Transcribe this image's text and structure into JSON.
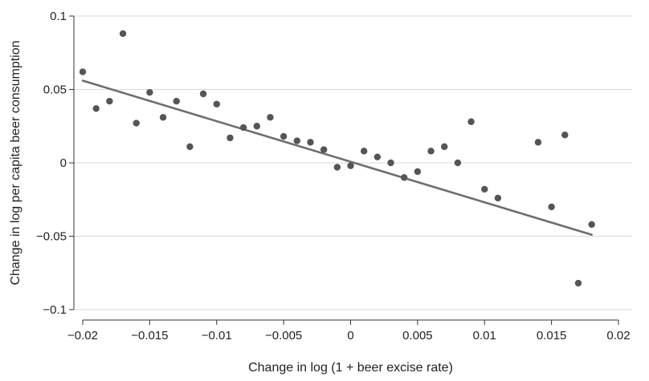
{
  "chart_data": {
    "type": "scatter",
    "title": "",
    "xlabel": "Change in log (1 + beer excise rate)",
    "ylabel": "Change in log per capita beer consumption",
    "xlim": [
      -0.02,
      0.02
    ],
    "ylim": [
      -0.1,
      0.1
    ],
    "x_ticks": [
      -0.02,
      -0.015,
      -0.01,
      -0.005,
      0,
      0.005,
      0.01,
      0.015,
      0.02
    ],
    "x_tick_labels": [
      "−0.02",
      "−0.015",
      "−0.01",
      "−0.005",
      "0",
      "0.005",
      "0.01",
      "0.015",
      "0.02"
    ],
    "y_ticks": [
      0.1,
      0.05,
      0,
      -0.05,
      -0.1
    ],
    "y_tick_labels": [
      "0.1",
      "0.05",
      "0",
      "−0.05",
      "−0.1"
    ],
    "grid": true,
    "grid_orientation": "horizontal",
    "colors": {
      "points": "#555555",
      "fit_line": "#6e6e6e",
      "grid": "#d9d9d9",
      "axis": "#333333"
    },
    "series": [
      {
        "type": "scatter",
        "x": [
          -0.02,
          -0.019,
          -0.018,
          -0.017,
          -0.016,
          -0.015,
          -0.014,
          -0.013,
          -0.012,
          -0.011,
          -0.01,
          -0.009,
          -0.008,
          -0.007,
          -0.006,
          -0.005,
          -0.004,
          -0.003,
          -0.002,
          -0.001,
          0.0,
          0.001,
          0.002,
          0.003,
          0.004,
          0.005,
          0.006,
          0.007,
          0.008,
          0.009,
          0.01,
          0.011,
          0.014,
          0.015,
          0.016,
          0.017,
          0.018
        ],
        "y": [
          0.062,
          0.037,
          0.042,
          0.088,
          0.027,
          0.048,
          0.031,
          0.042,
          0.011,
          0.047,
          0.04,
          0.017,
          0.024,
          0.025,
          0.031,
          0.018,
          0.015,
          0.014,
          0.009,
          -0.003,
          -0.002,
          0.008,
          0.004,
          0.0,
          -0.01,
          -0.006,
          0.008,
          0.011,
          0.0,
          0.028,
          -0.018,
          -0.024,
          0.014,
          -0.03,
          0.019,
          -0.082,
          -0.042
        ]
      },
      {
        "type": "line",
        "x": [
          -0.02,
          0.018
        ],
        "y": [
          0.056,
          -0.049
        ]
      }
    ]
  }
}
